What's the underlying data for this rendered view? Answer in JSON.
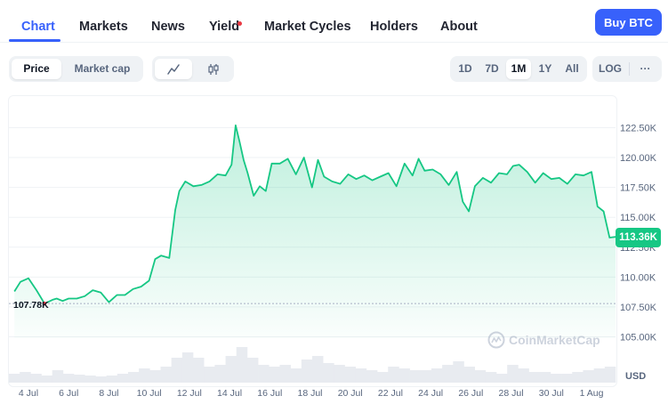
{
  "nav": {
    "tabs": [
      {
        "label": "Chart",
        "active": true
      },
      {
        "label": "Markets"
      },
      {
        "label": "News"
      },
      {
        "label": "Yield",
        "dot": true
      },
      {
        "label": "Market Cycles"
      },
      {
        "label": "Holders"
      },
      {
        "label": "About"
      }
    ],
    "buy_button": "Buy BTC"
  },
  "toolbar": {
    "metric": [
      "Price",
      "Market cap"
    ],
    "metric_selected": "Price",
    "chart_style_icons": [
      "line-chart-icon",
      "candlestick-icon"
    ],
    "ranges": [
      "1D",
      "7D",
      "1M",
      "1Y",
      "All"
    ],
    "range_selected": "1M",
    "scale": "LOG",
    "more": "···"
  },
  "chart": {
    "current_price_label": "113.36K",
    "low_label": "107.78K",
    "watermark": "CoinMarketCap",
    "volume_axis_label": "USD",
    "accent": "#16c784",
    "low_marker_color": "#ea3943"
  },
  "chart_data": {
    "type": "area",
    "x_ticks": [
      "4 Jul",
      "6 Jul",
      "8 Jul",
      "10 Jul",
      "12 Jul",
      "14 Jul",
      "16 Jul",
      "18 Jul",
      "20 Jul",
      "22 Jul",
      "24 Jul",
      "26 Jul",
      "28 Jul",
      "30 Jul",
      "1 Aug"
    ],
    "y_ticks": [
      "122.50K",
      "120.00K",
      "117.50K",
      "115.00K",
      "112.50K",
      "110.00K",
      "107.50K",
      "105.00K"
    ],
    "ylim": [
      105000,
      122500
    ],
    "xlim_days": [
      3.3,
      33.2
    ],
    "series": [
      {
        "x": [
          3.3,
          3.6,
          4.0,
          4.4,
          4.8,
          5.2,
          5.4,
          5.7,
          6.0,
          6.4,
          6.8,
          7.2,
          7.6,
          8.0,
          8.4,
          8.8,
          9.2,
          9.6,
          10.0,
          10.3,
          10.6,
          11.0,
          11.3,
          11.5,
          11.8,
          12.2,
          12.6,
          13.0,
          13.4,
          13.8,
          14.1,
          14.3,
          14.5,
          14.7,
          14.9,
          15.2,
          15.5,
          15.8,
          16.1,
          16.5,
          16.9,
          17.3,
          17.7,
          18.1,
          18.4,
          18.7,
          19.1,
          19.5,
          19.9,
          20.3,
          20.7,
          21.1,
          21.5,
          21.9,
          22.3,
          22.7,
          23.1,
          23.4,
          23.7,
          24.1,
          24.5,
          24.9,
          25.3,
          25.6,
          25.9,
          26.2,
          26.6,
          27.0,
          27.4,
          27.8,
          28.1,
          28.4,
          28.8,
          29.2,
          29.6,
          30.0,
          30.4,
          30.8,
          31.2,
          31.6,
          32.0,
          32.3,
          32.6,
          32.9,
          33.2
        ],
        "y": [
          108800,
          109600,
          109900,
          108900,
          107780,
          108100,
          108200,
          108000,
          108200,
          108200,
          108400,
          108900,
          108700,
          107900,
          108500,
          108500,
          109000,
          109200,
          109700,
          111500,
          111800,
          111600,
          115600,
          117200,
          118000,
          117600,
          117700,
          118000,
          118600,
          118500,
          119400,
          122700,
          121300,
          119800,
          118700,
          116800,
          117600,
          117200,
          119500,
          119500,
          119900,
          118600,
          120000,
          117500,
          119800,
          118400,
          118000,
          117800,
          118600,
          118200,
          118500,
          118100,
          118400,
          118700,
          117600,
          119500,
          118500,
          119900,
          118900,
          119000,
          118600,
          117700,
          118800,
          116300,
          115500,
          117600,
          118300,
          117900,
          118700,
          118600,
          119300,
          119400,
          118800,
          117900,
          118700,
          118200,
          118300,
          117800,
          118600,
          118500,
          118800,
          115900,
          115500,
          113300,
          113360
        ]
      }
    ],
    "volume_approx": [
      0.1,
      0.12,
      0.1,
      0.08,
      0.14,
      0.1,
      0.09,
      0.08,
      0.07,
      0.08,
      0.1,
      0.12,
      0.16,
      0.14,
      0.18,
      0.28,
      0.34,
      0.28,
      0.18,
      0.2,
      0.3,
      0.4,
      0.28,
      0.2,
      0.18,
      0.2,
      0.16,
      0.26,
      0.3,
      0.22,
      0.2,
      0.18,
      0.16,
      0.14,
      0.12,
      0.18,
      0.16,
      0.14,
      0.14,
      0.16,
      0.2,
      0.24,
      0.18,
      0.14,
      0.12,
      0.1,
      0.2,
      0.16,
      0.12,
      0.12,
      0.1,
      0.1,
      0.12,
      0.14,
      0.16,
      0.18
    ],
    "grid": true
  }
}
